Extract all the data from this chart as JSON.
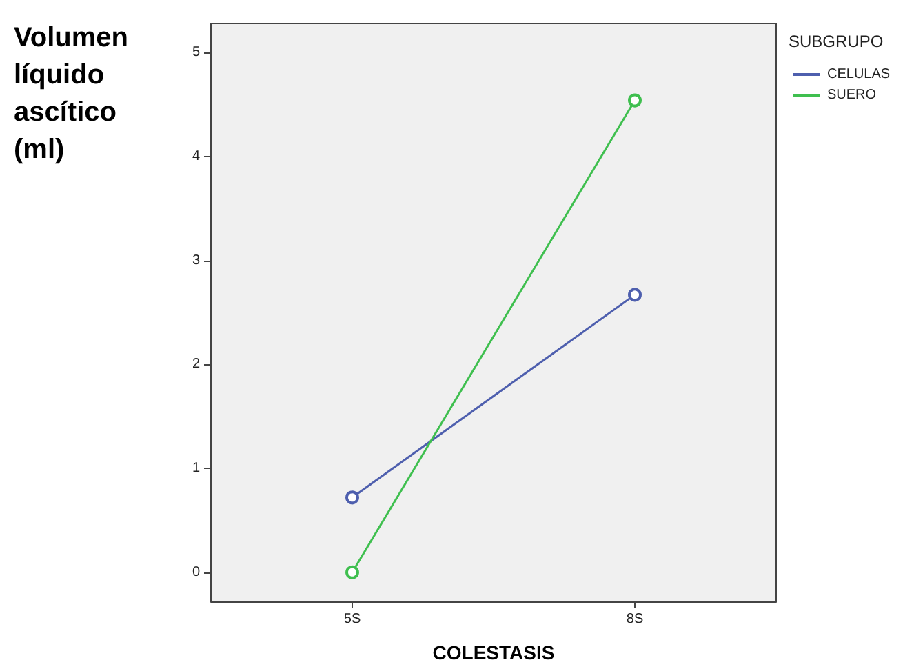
{
  "chart_data": {
    "type": "line",
    "ylabel": "Volumen líquido ascítico (ml)",
    "xlabel": "COLESTASIS",
    "legend_title": "SUBGRUPO",
    "categories": [
      "5S",
      "8S"
    ],
    "series": [
      {
        "name": "CELULAS",
        "color": "#4e5fae",
        "values": [
          0.72,
          2.67
        ]
      },
      {
        "name": "SUERO",
        "color": "#3fbf4f",
        "values": [
          0,
          4.54
        ]
      }
    ],
    "ylim": [
      -0.28,
      5.28
    ],
    "yticks": [
      0,
      1,
      2,
      3,
      4,
      5
    ],
    "grid": false,
    "legend": "top right",
    "marker": "circle",
    "line_style": "solid"
  }
}
